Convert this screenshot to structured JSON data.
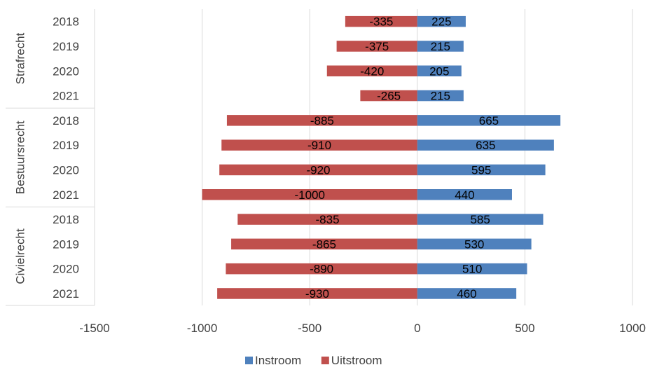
{
  "chart_data": {
    "type": "bar",
    "orientation": "horizontal",
    "stacked": true,
    "title": "",
    "xlabel": "",
    "ylabel": "",
    "xlim": [
      -1500,
      1000
    ],
    "x_ticks": [
      -1500,
      -1000,
      -500,
      0,
      500,
      1000
    ],
    "grid": true,
    "legend_position": "bottom",
    "colors": {
      "Instroom": "#4F81BD",
      "Uitstroom": "#C0504D"
    },
    "groups": [
      {
        "name": "Strafrecht",
        "categories": [
          "2018",
          "2019",
          "2020",
          "2021"
        ],
        "Instroom": [
          225,
          215,
          205,
          215
        ],
        "Uitstroom": [
          -335,
          -375,
          -420,
          -265
        ]
      },
      {
        "name": "Bestuursrecht",
        "categories": [
          "2018",
          "2019",
          "2020",
          "2021"
        ],
        "Instroom": [
          665,
          635,
          595,
          440
        ],
        "Uitstroom": [
          -885,
          -910,
          -920,
          -1000
        ]
      },
      {
        "name": "Civielrecht",
        "categories": [
          "2018",
          "2019",
          "2020",
          "2021"
        ],
        "Instroom": [
          585,
          530,
          510,
          460
        ],
        "Uitstroom": [
          -835,
          -865,
          -890,
          -930
        ]
      }
    ],
    "series": [
      {
        "name": "Instroom",
        "color": "#4F81BD"
      },
      {
        "name": "Uitstroom",
        "color": "#C0504D"
      }
    ]
  }
}
